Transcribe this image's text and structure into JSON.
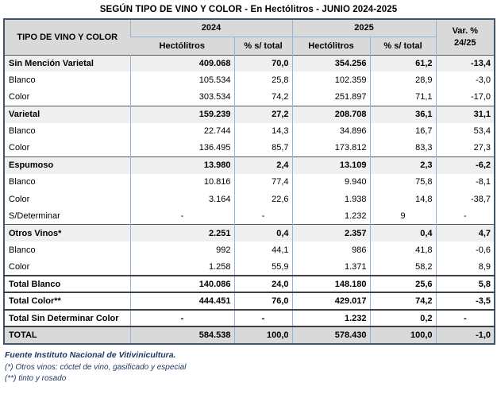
{
  "title": "SEGÚN TIPO DE VINO Y COLOR - En Hectólitros - JUNIO 2024-2025",
  "colors": {
    "header_bg": "#d9d9d9",
    "category_row_bg": "#efefef",
    "grand_total_bg": "#d9d9d9",
    "grid_blue": "#95b3d7",
    "dark_separator": "#404040",
    "outer_border": "#44546a",
    "footnote_text": "#1f3864"
  },
  "table": {
    "header": {
      "col_tipo": "TIPO DE VINO Y COLOR",
      "year_2024": "2024",
      "year_2025": "2025",
      "var_line1": "Var. %",
      "var_line2": "24/25",
      "hectolitros_2024": "Hectólitros",
      "pct_total_2024": "% s/ total",
      "hectolitros_2025": "Hectólitros",
      "pct_total_2025": "% s/ total"
    },
    "rows": [
      {
        "label": "Sin Mención Varietal",
        "type": "category",
        "values": [
          "409.068",
          "70,0",
          "354.256",
          "61,2",
          "-13,4"
        ]
      },
      {
        "label": "Blanco",
        "type": "sub",
        "values": [
          "105.534",
          "25,8",
          "102.359",
          "28,9",
          "-3,0"
        ]
      },
      {
        "label": "Color",
        "type": "sub",
        "values": [
          "303.534",
          "74,2",
          "251.897",
          "71,1",
          "-17,0"
        ]
      },
      {
        "label": "Varietal",
        "type": "category",
        "values": [
          "159.239",
          "27,2",
          "208.708",
          "36,1",
          "31,1"
        ]
      },
      {
        "label": "Blanco",
        "type": "sub",
        "values": [
          "22.744",
          "14,3",
          "34.896",
          "16,7",
          "53,4"
        ]
      },
      {
        "label": "Color",
        "type": "sub",
        "values": [
          "136.495",
          "85,7",
          "173.812",
          "83,3",
          "27,3"
        ]
      },
      {
        "label": "Espumoso",
        "type": "category",
        "values": [
          "13.980",
          "2,4",
          "13.109",
          "2,3",
          "-6,2"
        ]
      },
      {
        "label": "Blanco",
        "type": "sub",
        "values": [
          "10.816",
          "77,4",
          "9.940",
          "75,8",
          "-8,1"
        ]
      },
      {
        "label": "Color",
        "type": "sub",
        "values": [
          "3.164",
          "22,6",
          "1.938",
          "14,8",
          "-38,7"
        ]
      },
      {
        "label": "S/Determinar",
        "type": "sub",
        "values": [
          "-",
          "-",
          "1.232",
          "9",
          "-"
        ],
        "center": [
          0,
          1,
          3,
          4
        ]
      },
      {
        "label": "Otros Vinos*",
        "type": "category",
        "values": [
          "2.251",
          "0,4",
          "2.357",
          "0,4",
          "4,7"
        ]
      },
      {
        "label": "Blanco",
        "type": "sub",
        "values": [
          "992",
          "44,1",
          "986",
          "41,8",
          "-0,6"
        ]
      },
      {
        "label": "Color",
        "type": "sub",
        "values": [
          "1.258",
          "55,9",
          "1.371",
          "58,2",
          "8,9"
        ]
      },
      {
        "label": "Total Blanco",
        "type": "total",
        "values": [
          "140.086",
          "24,0",
          "148.180",
          "25,6",
          "5,8"
        ]
      },
      {
        "label": "Total Color**",
        "type": "total",
        "values": [
          "444.451",
          "76,0",
          "429.017",
          "74,2",
          "-3,5"
        ]
      },
      {
        "label": "Total Sin Determinar Color",
        "type": "total",
        "values": [
          "-",
          "-",
          "1.232",
          "0,2",
          "-"
        ],
        "center": [
          0,
          1,
          4
        ]
      },
      {
        "label": "TOTAL",
        "type": "grand",
        "values": [
          "584.538",
          "100,0",
          "578.430",
          "100,0",
          "-1,0"
        ]
      }
    ]
  },
  "footer": {
    "source": "Fuente Instituto Nacional de Vitivinicultura.",
    "note1": "(*) Otros vinos: cóctel de vino, gasificado y especial",
    "note2": "(**) tinto y rosado"
  }
}
